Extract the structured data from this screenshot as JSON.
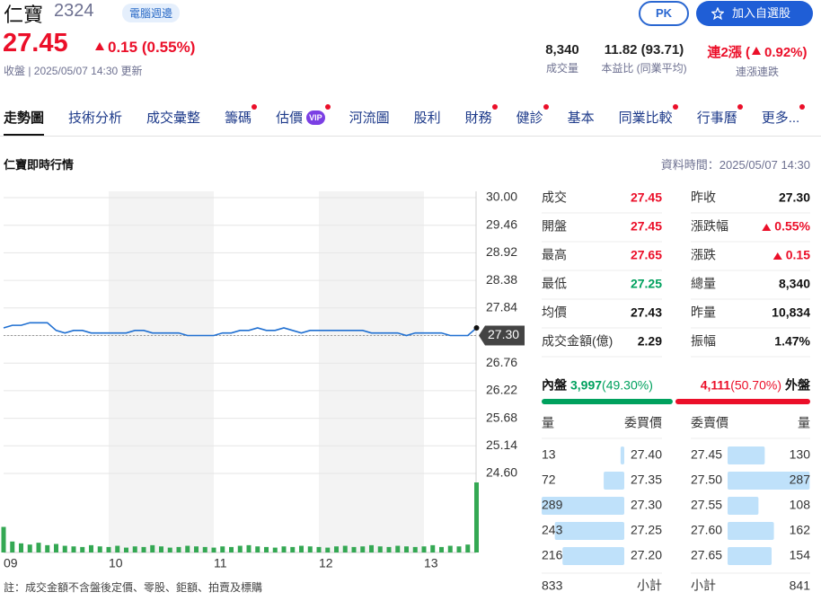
{
  "header": {
    "name": "仁寶",
    "code": "2324",
    "sector": "電腦週邊",
    "pk": "PK",
    "watch": "加入自選股"
  },
  "quote": {
    "price": "27.45",
    "change": "0.15",
    "change_pct": "(0.55%)",
    "status": "收盤 | 2025/05/07 14:30 更新",
    "volume": {
      "value": "8,340",
      "label": "成交量"
    },
    "pe": {
      "value": "11.82 (93.71)",
      "label": "本益比 (同業平均)"
    },
    "streak": {
      "value": "連2漲 (",
      "pct": "0.92%)",
      "label": "連漲連跌"
    }
  },
  "tabs": [
    {
      "label": "走勢圖",
      "active": true
    },
    {
      "label": "技術分析"
    },
    {
      "label": "成交彙整"
    },
    {
      "label": "籌碼",
      "dot": true
    },
    {
      "label": "估價",
      "badge": "VIP",
      "dot": true
    },
    {
      "label": "河流圖"
    },
    {
      "label": "股利"
    },
    {
      "label": "財務",
      "dot": true
    },
    {
      "label": "健診",
      "dot": true
    },
    {
      "label": "基本"
    },
    {
      "label": "同業比較",
      "dot": true
    },
    {
      "label": "行事曆",
      "dot": true
    },
    {
      "label": "更多...",
      "dot": true
    }
  ],
  "chart_data": {
    "type": "line",
    "title": "仁寶即時行情",
    "subtitle": "資料時間：2025/05/07 14:30",
    "color": "#1f6fd1",
    "volume_color": "#34a853",
    "grid": true,
    "categories": [
      "09",
      null,
      null,
      null,
      null,
      null,
      null,
      null,
      null,
      null,
      null,
      null,
      "10",
      null,
      null,
      null,
      null,
      null,
      null,
      null,
      null,
      null,
      null,
      null,
      "11",
      null,
      null,
      null,
      null,
      null,
      null,
      null,
      null,
      null,
      null,
      null,
      "12",
      null,
      null,
      null,
      null,
      null,
      null,
      null,
      null,
      null,
      null,
      null,
      "13",
      null,
      null,
      null,
      null,
      null,
      null
    ],
    "values": [
      27.45,
      27.5,
      27.5,
      27.55,
      27.55,
      27.55,
      27.4,
      27.35,
      27.4,
      27.4,
      27.35,
      27.35,
      27.35,
      27.35,
      27.35,
      27.4,
      27.4,
      27.35,
      27.35,
      27.35,
      27.35,
      27.3,
      27.3,
      27.3,
      27.3,
      27.35,
      27.35,
      27.4,
      27.4,
      27.45,
      27.4,
      27.4,
      27.45,
      27.4,
      27.35,
      27.4,
      27.4,
      27.4,
      27.4,
      27.4,
      27.4,
      27.4,
      27.35,
      27.35,
      27.35,
      27.35,
      27.3,
      27.35,
      27.35,
      27.35,
      27.35,
      27.3,
      27.3,
      27.3,
      27.45
    ],
    "volume": [
      420,
      180,
      150,
      130,
      160,
      120,
      140,
      110,
      100,
      90,
      120,
      100,
      90,
      110,
      80,
      100,
      90,
      120,
      100,
      80,
      90,
      110,
      100,
      90,
      80,
      100,
      90,
      110,
      120,
      100,
      90,
      80,
      100,
      90,
      110,
      100,
      90,
      80,
      100,
      110,
      90,
      100,
      120,
      100,
      90,
      110,
      100,
      90,
      100,
      120,
      90,
      110,
      100,
      130,
      1150
    ],
    "ylim": [
      24.6,
      30.0
    ],
    "yticks": [
      {
        "value": 30.0,
        "label": "30.00"
      },
      {
        "value": 29.46,
        "label": "29.46"
      },
      {
        "value": 28.92,
        "label": "28.92"
      },
      {
        "value": 28.38,
        "label": "28.38"
      },
      {
        "value": 27.84,
        "label": "27.84"
      },
      {
        "value": 27.3,
        "label": "27.30"
      },
      {
        "value": 26.76,
        "label": "26.76"
      },
      {
        "value": 26.22,
        "label": "26.22"
      },
      {
        "value": 25.68,
        "label": "25.68"
      },
      {
        "value": 25.14,
        "label": "25.14"
      },
      {
        "value": 24.6,
        "label": "24.60"
      }
    ],
    "reference": {
      "value": 27.3,
      "label": "27.30"
    }
  },
  "details": {
    "left": [
      {
        "label": "成交",
        "value": "27.45",
        "color": "#eb0f29"
      },
      {
        "label": "開盤",
        "value": "27.45",
        "color": "#eb0f29"
      },
      {
        "label": "最高",
        "value": "27.65",
        "color": "#eb0f29"
      },
      {
        "label": "最低",
        "value": "27.25",
        "color": "#00a15e"
      },
      {
        "label": "均價",
        "value": "27.43",
        "color": "#111111"
      },
      {
        "label": "成交金額(億)",
        "value": "2.29",
        "color": "#111111"
      }
    ],
    "right": [
      {
        "label": "昨收",
        "value": "27.30",
        "color": "#111111"
      },
      {
        "label": "漲跌幅",
        "value": "0.55%",
        "color": "#eb0f29",
        "arrow": true
      },
      {
        "label": "漲跌",
        "value": "0.15",
        "color": "#eb0f29",
        "arrow": true
      },
      {
        "label": "總量",
        "value": "8,340",
        "color": "#111111"
      },
      {
        "label": "昨量",
        "value": "10,834",
        "color": "#111111"
      },
      {
        "label": "振幅",
        "value": "1.47%",
        "color": "#111111"
      }
    ]
  },
  "pressure": {
    "inner_label": "內盤",
    "inner_volume": "3,997",
    "inner_pct": {
      "value": 49.3,
      "label": "(49.30%)"
    },
    "outer_volume": "4,111",
    "outer_pct": {
      "value": 50.7,
      "label": "(50.70%)"
    },
    "outer_label": "外盤",
    "inner_color": "#00a15e",
    "outer_color": "#eb0f29"
  },
  "order_book": {
    "headers": [
      "量",
      "委買價",
      "委賣價",
      "量"
    ],
    "bar_color": "#bfe1fa",
    "bids": [
      {
        "volume": 13,
        "price": "27.40"
      },
      {
        "volume": 72,
        "price": "27.35"
      },
      {
        "volume": 289,
        "price": "27.30"
      },
      {
        "volume": 243,
        "price": "27.25"
      },
      {
        "volume": 216,
        "price": "27.20"
      }
    ],
    "asks": [
      {
        "price": "27.45",
        "volume": 130
      },
      {
        "price": "27.50",
        "volume": 287
      },
      {
        "price": "27.55",
        "volume": 108
      },
      {
        "price": "27.60",
        "volume": 162
      },
      {
        "price": "27.65",
        "volume": 154
      }
    ],
    "bid_total": 833,
    "ask_total": 841,
    "subtotal": "小計"
  },
  "footnote": "註：成交金額不含盤後定價、零股、鉅額、拍賣及標購"
}
